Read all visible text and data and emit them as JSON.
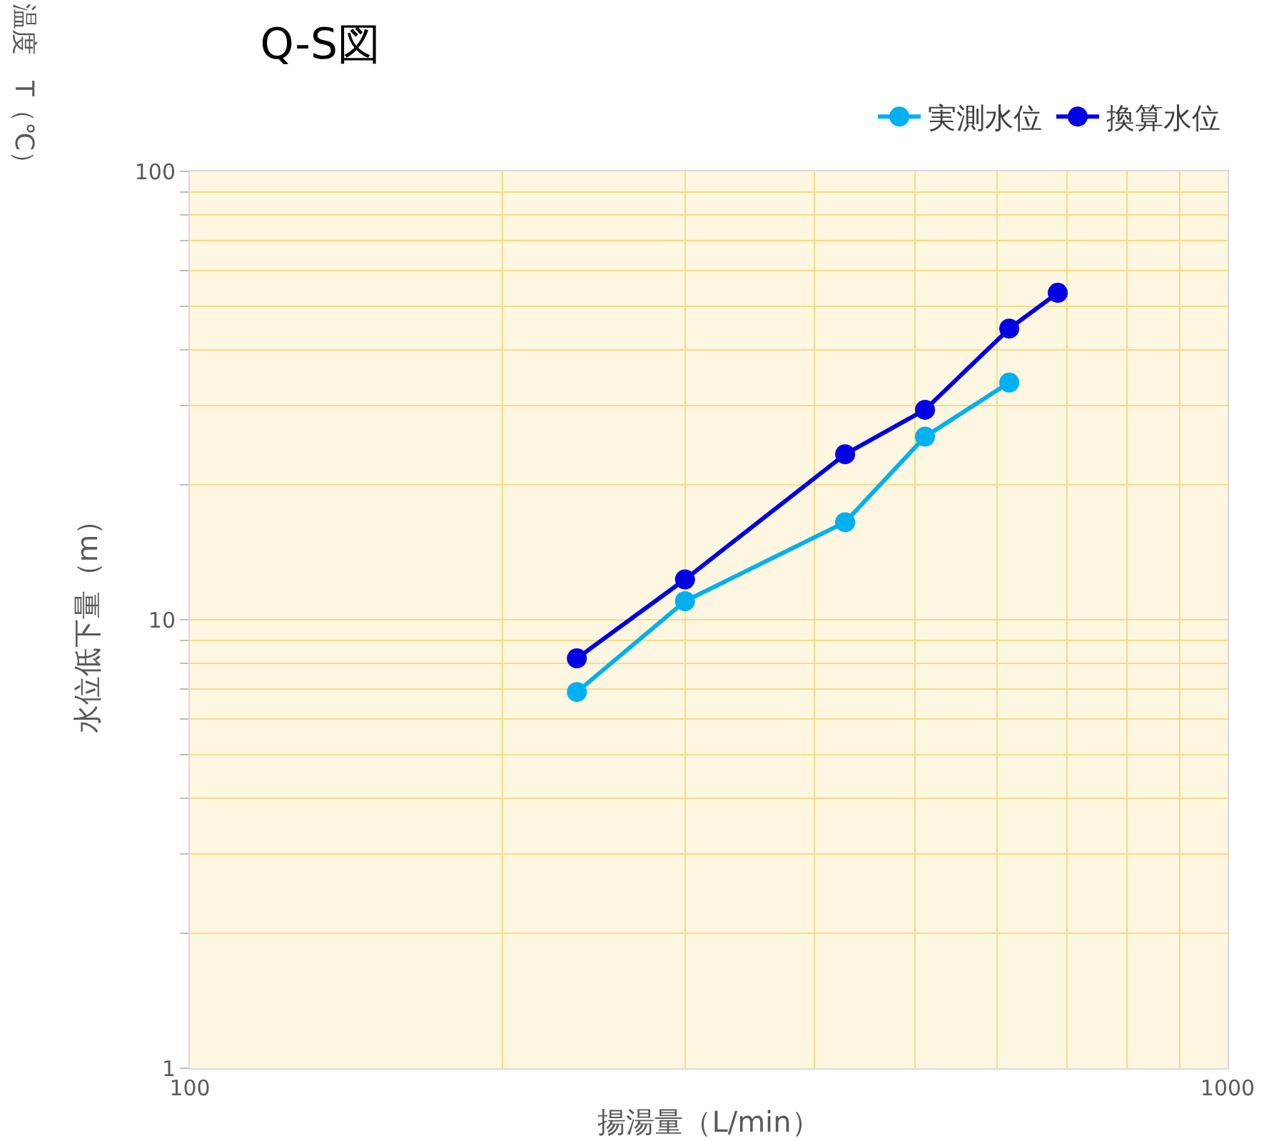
{
  "chart_data": {
    "type": "line",
    "title": "Q-S図",
    "xlabel": "揚湯量（L/min）",
    "ylabel": "水位低下量（m）",
    "annotations": [
      "温度　T（℃）"
    ],
    "log": "xy",
    "xlim": [
      100,
      1000
    ],
    "ylim": [
      1,
      100
    ],
    "xticks": [
      100,
      {
        "value": 200,
        "label": null
      },
      {
        "value": 300,
        "label": null
      },
      {
        "value": 400,
        "label": null
      },
      {
        "value": 500,
        "label": null
      },
      {
        "value": 600,
        "label": null
      },
      {
        "value": 700,
        "label": null
      },
      {
        "value": 800,
        "label": null
      },
      {
        "value": 900,
        "label": null
      },
      1000
    ],
    "yticks": [
      1,
      {
        "value": 2,
        "label": null
      },
      {
        "value": 3,
        "label": null
      },
      {
        "value": 4,
        "label": null
      },
      {
        "value": 5,
        "label": null
      },
      {
        "value": 6,
        "label": null
      },
      {
        "value": 7,
        "label": null
      },
      {
        "value": 8,
        "label": null
      },
      {
        "value": 9,
        "label": null
      },
      10,
      {
        "value": 20,
        "label": null
      },
      {
        "value": 30,
        "label": null
      },
      {
        "value": 40,
        "label": null
      },
      {
        "value": 50,
        "label": null
      },
      {
        "value": 60,
        "label": null
      },
      {
        "value": 70,
        "label": null
      },
      {
        "value": 80,
        "label": null
      },
      {
        "value": 90,
        "label": null
      },
      100
    ],
    "grid": true,
    "legend": "top right",
    "marker": "circle",
    "line_style": "solid",
    "series": [
      {
        "name": "実測水位",
        "color": "#00b0f0",
        "x": [
          236,
          300,
          428,
          511,
          616
        ],
        "values": [
          6.9,
          11.0,
          16.5,
          25.6,
          33.8
        ]
      },
      {
        "name": "換算水位",
        "color": "#0000e6",
        "x": [
          236,
          300,
          428,
          511,
          616,
          686
        ],
        "values": [
          8.2,
          12.3,
          23.4,
          29.4,
          44.6,
          53.6
        ]
      }
    ]
  }
}
